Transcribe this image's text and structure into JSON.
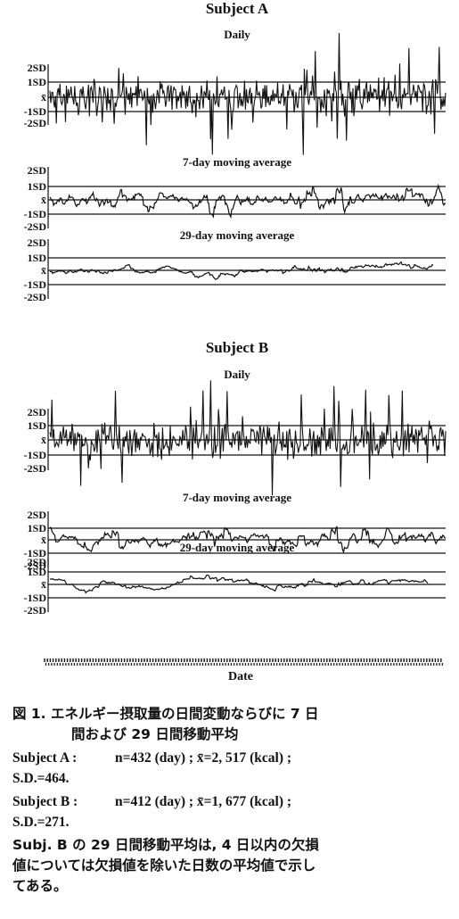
{
  "chart_data": [
    {
      "type": "line",
      "subject": "Subject A",
      "title": "Daily",
      "y_labels": [
        "2SD",
        "1SD",
        "x̄",
        "-1SD",
        "-2SD"
      ],
      "series": [
        {
          "values": []
        }
      ]
    },
    {
      "type": "line",
      "subject": "Subject A",
      "title": "7-day moving average",
      "y_labels": [
        "2SD",
        "1SD",
        "x̄",
        "-1SD",
        "-2SD"
      ],
      "series": [
        {
          "values": []
        }
      ]
    },
    {
      "type": "line",
      "subject": "Subject A",
      "title": "29-day moving average",
      "y_labels": [
        "2SD",
        "1SD",
        "x̄",
        "-1SD",
        "-2SD"
      ],
      "series": [
        {
          "values": []
        }
      ]
    },
    {
      "type": "line",
      "subject": "Subject B",
      "title": "Daily",
      "y_labels": [
        "2SD",
        "1SD",
        "x̄",
        "-1SD",
        "-2SD"
      ],
      "series": [
        {
          "values": []
        }
      ]
    },
    {
      "type": "line",
      "subject": "Subject B",
      "title": "7-day moving average",
      "y_labels": [
        "2SD",
        "1SD",
        "x̄",
        "-1SD",
        "-2SD"
      ],
      "series": [
        {
          "values": []
        }
      ]
    },
    {
      "type": "line",
      "subject": "Subject B",
      "title": "29-day moving average",
      "y_labels": [
        "2SD",
        "1SD",
        "x̄",
        "-1SD",
        "-2SD"
      ],
      "series": [
        {
          "values": []
        }
      ]
    }
  ],
  "figure": {
    "subject_a_title": "Subject A",
    "subject_b_title": "Subject B",
    "xlabel": "Date"
  },
  "caption": {
    "line1": "図 1. エネルギー摂取量の日間変動ならびに 7 日",
    "line2": "間および 29 日間移動平均",
    "subject_a_label": "Subject A :",
    "subject_a_stats": "n=432 (day) ; x̄=2, 517 (kcal) ;",
    "subject_a_sd": "S.D.=464.",
    "subject_b_label": "Subject B :",
    "subject_b_stats": "n=412 (day) ; x̄=1, 677 (kcal) ;",
    "subject_b_sd": "S.D.=271.",
    "note1": "Subj. B の 29 日間移動平均は, 4 日以内の欠損",
    "note2": "値については欠損値を除いた日数の平均値で示し",
    "note3": "てある。"
  }
}
